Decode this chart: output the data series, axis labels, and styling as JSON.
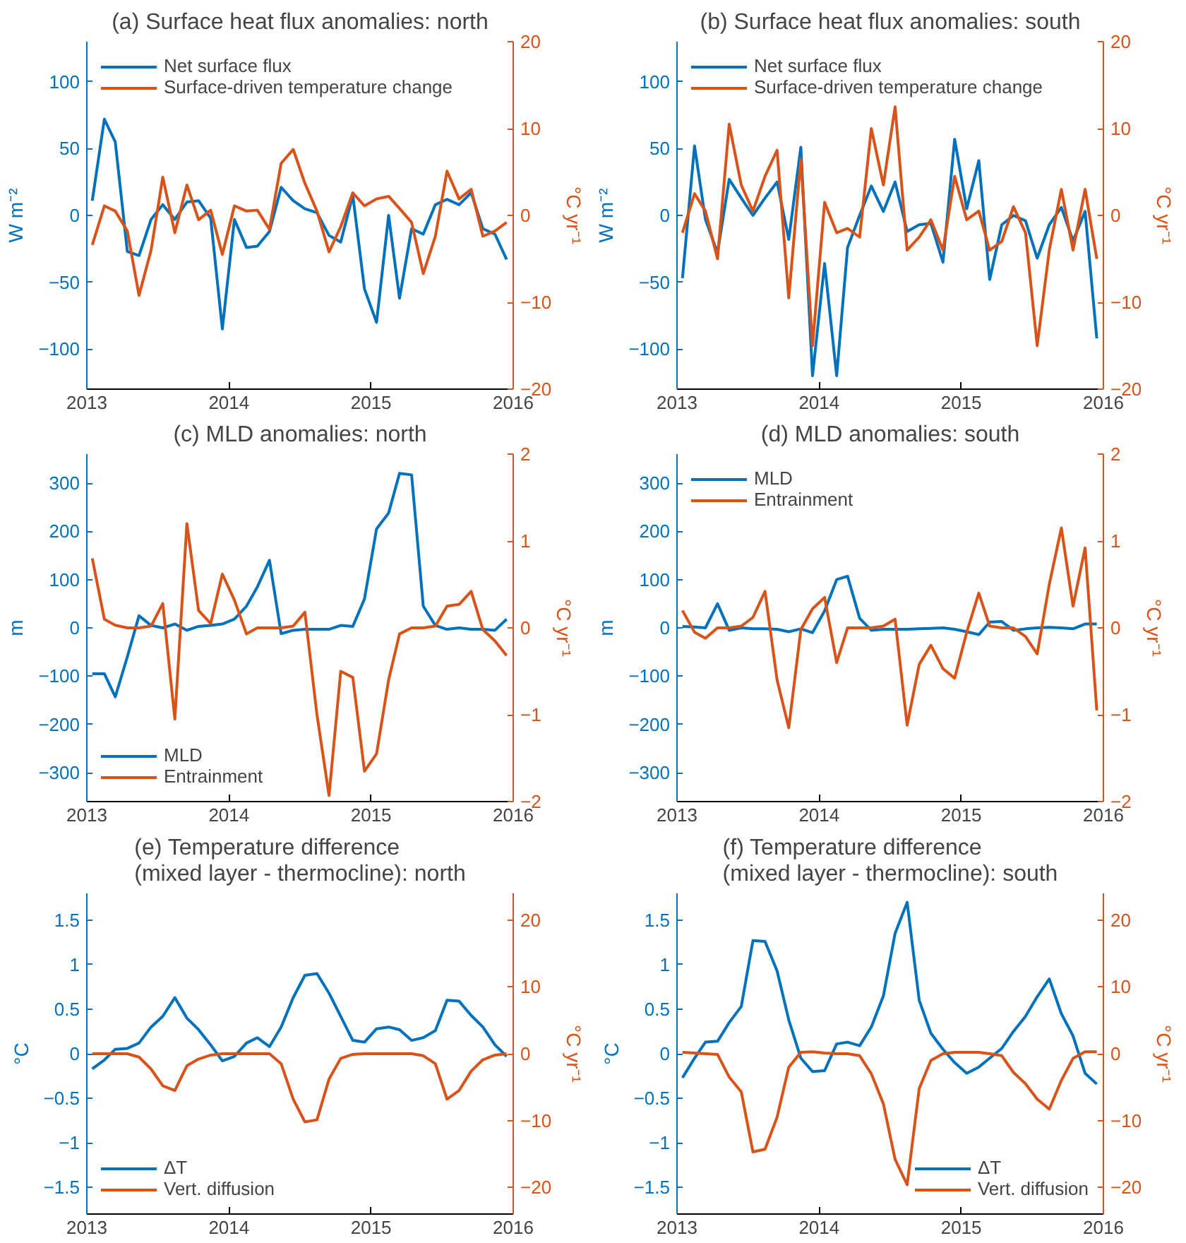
{
  "chart_data": [
    {
      "type": "line",
      "title": "(a) Surface heat flux anomalies: north",
      "ylabel": "W m⁻²",
      "y2label": "°C yr⁻¹",
      "legend": "top left",
      "xlim": [
        "2013",
        "2016"
      ],
      "xticks": [
        "2013",
        "2014",
        "2015",
        "2016"
      ],
      "ylim": [
        -130,
        130
      ],
      "yticks": [
        -100,
        -50,
        0,
        50,
        100
      ],
      "y2lim": [
        -20,
        20
      ],
      "y2ticks": [
        -20,
        -10,
        0,
        10,
        20
      ],
      "x": [
        "2013-01-15",
        "2013-02-15",
        "2013-03-15",
        "2013-04-15",
        "2013-05-15",
        "2013-06-15",
        "2013-07-15",
        "2013-08-15",
        "2013-09-15",
        "2013-10-15",
        "2013-11-15",
        "2013-12-15",
        "2014-01-15",
        "2014-02-15",
        "2014-03-15",
        "2014-04-15",
        "2014-05-15",
        "2014-06-15",
        "2014-07-15",
        "2014-08-15",
        "2014-09-15",
        "2014-10-15",
        "2014-11-15",
        "2014-12-15",
        "2015-01-15",
        "2015-02-15",
        "2015-03-15",
        "2015-04-15",
        "2015-05-15",
        "2015-06-15",
        "2015-07-15",
        "2015-08-15",
        "2015-09-15",
        "2015-10-15",
        "2015-11-15",
        "2015-12-15"
      ],
      "series": [
        {
          "name": "Net surface flux",
          "color": "#0072bd",
          "values": [
            11,
            72,
            55,
            -27,
            -30,
            -3,
            8,
            -3,
            10,
            11,
            -2,
            -85,
            -3,
            -24,
            -23,
            -12,
            21,
            11,
            5,
            2,
            -15,
            -20,
            15,
            -55,
            -80,
            0,
            -62,
            -10,
            -14,
            8,
            12,
            8,
            17,
            -10,
            -14,
            -33
          ]
        },
        {
          "name": "Surface-driven temperature change",
          "color": "#d95319",
          "axis": "y2",
          "values": [
            -3.4,
            1.1,
            0.5,
            -1.8,
            -9.2,
            -4,
            4.4,
            -2,
            3.5,
            -0.5,
            0.6,
            -4.5,
            1.1,
            0.5,
            0.6,
            -1.6,
            6,
            7.6,
            3.7,
            0.5,
            -4.2,
            -1.3,
            2.6,
            1.1,
            1.9,
            2.2,
            0.8,
            -0.8,
            -6.7,
            -2.4,
            5.1,
            1.9,
            3,
            -2.4,
            -1.8,
            -0.8
          ]
        }
      ]
    },
    {
      "type": "line",
      "title": "(b) Surface heat flux anomalies: south",
      "ylabel": "W m⁻²",
      "y2label": "°C yr⁻¹",
      "legend": "top left",
      "xlim": [
        "2013",
        "2016"
      ],
      "xticks": [
        "2013",
        "2014",
        "2015",
        "2016"
      ],
      "ylim": [
        -130,
        130
      ],
      "yticks": [
        -100,
        -50,
        0,
        50,
        100
      ],
      "y2lim": [
        -20,
        20
      ],
      "y2ticks": [
        -20,
        -10,
        0,
        10,
        20
      ],
      "x": [
        "2013-01-15",
        "2013-02-15",
        "2013-03-15",
        "2013-04-15",
        "2013-05-15",
        "2013-06-15",
        "2013-07-15",
        "2013-08-15",
        "2013-09-15",
        "2013-10-15",
        "2013-11-15",
        "2013-12-15",
        "2014-01-15",
        "2014-02-15",
        "2014-03-15",
        "2014-04-15",
        "2014-05-15",
        "2014-06-15",
        "2014-07-15",
        "2014-08-15",
        "2014-09-15",
        "2014-10-15",
        "2014-11-15",
        "2014-12-15",
        "2015-01-15",
        "2015-02-15",
        "2015-03-15",
        "2015-04-15",
        "2015-05-15",
        "2015-06-15",
        "2015-07-15",
        "2015-08-15",
        "2015-09-15",
        "2015-10-15",
        "2015-11-15",
        "2015-12-15"
      ],
      "series": [
        {
          "name": "Net surface flux",
          "color": "#0072bd",
          "values": [
            -47,
            52,
            -3,
            -28,
            27,
            13,
            0,
            13,
            25,
            -18,
            51,
            -120,
            -36,
            -120,
            -24,
            0,
            22,
            3,
            25,
            -12,
            -7,
            -6,
            -35,
            57,
            5,
            41,
            -48,
            -7,
            0,
            -4,
            -32,
            -7,
            6,
            -19,
            3,
            -92
          ]
        },
        {
          "name": "Surface-driven temperature change",
          "color": "#d95319",
          "axis": "y2",
          "values": [
            -2,
            2.5,
            0.5,
            -5,
            10.5,
            3.5,
            0.5,
            4.5,
            7.5,
            -9.5,
            6.5,
            -15,
            1.5,
            -2,
            -1.5,
            -2.5,
            10,
            3.5,
            12.5,
            -4,
            -2.5,
            -0.5,
            -4,
            4.5,
            -0.5,
            0.5,
            -4,
            -3,
            1,
            -2,
            -15,
            -4,
            3,
            -4,
            3,
            -5
          ]
        }
      ]
    },
    {
      "type": "line",
      "title": "(c) MLD anomalies: north",
      "ylabel": "m",
      "y2label": "°C yr⁻¹",
      "legend": "bottom left",
      "xlim": [
        "2013",
        "2016"
      ],
      "xticks": [
        "2013",
        "2014",
        "2015",
        "2016"
      ],
      "ylim": [
        -360,
        360
      ],
      "yticks": [
        -300,
        -200,
        -100,
        0,
        100,
        200,
        300
      ],
      "y2lim": [
        -2,
        2
      ],
      "y2ticks": [
        -2,
        -1,
        0,
        1,
        2
      ],
      "x": [
        "2013-01-15",
        "2013-02-15",
        "2013-03-15",
        "2013-04-15",
        "2013-05-15",
        "2013-06-15",
        "2013-07-15",
        "2013-08-15",
        "2013-09-15",
        "2013-10-15",
        "2013-11-15",
        "2013-12-15",
        "2014-01-15",
        "2014-02-15",
        "2014-03-15",
        "2014-04-15",
        "2014-05-15",
        "2014-06-15",
        "2014-07-15",
        "2014-08-15",
        "2014-09-15",
        "2014-10-15",
        "2014-11-15",
        "2014-12-15",
        "2015-01-15",
        "2015-02-15",
        "2015-03-15",
        "2015-04-15",
        "2015-05-15",
        "2015-06-15",
        "2015-07-15",
        "2015-08-15",
        "2015-09-15",
        "2015-10-15",
        "2015-11-15",
        "2015-12-15"
      ],
      "series": [
        {
          "name": "MLD",
          "color": "#0072bd",
          "values": [
            -95,
            -95,
            -143,
            -60,
            25,
            5,
            0,
            8,
            -5,
            3,
            5,
            8,
            18,
            45,
            85,
            140,
            -12,
            -5,
            -3,
            -3,
            -3,
            5,
            3,
            60,
            205,
            238,
            320,
            317,
            45,
            5,
            -3,
            0,
            -3,
            -3,
            -5,
            18
          ]
        },
        {
          "name": "Entrainment",
          "color": "#d95319",
          "axis": "y2",
          "values": [
            0.8,
            0.1,
            0.03,
            0,
            0,
            0.02,
            0.28,
            -1.05,
            1.2,
            0.2,
            0.05,
            0.62,
            0.32,
            -0.07,
            0,
            0,
            0,
            0.02,
            0.18,
            -1,
            -1.93,
            -0.5,
            -0.57,
            -1.65,
            -1.45,
            -0.6,
            -0.07,
            0,
            0,
            0.02,
            0.25,
            0.27,
            0.42,
            -0.02,
            -0.15,
            -0.32
          ]
        }
      ]
    },
    {
      "type": "line",
      "title": "(d) MLD anomalies: south",
      "ylabel": "m",
      "y2label": "°C yr⁻¹",
      "legend": "top left",
      "xlim": [
        "2013",
        "2016"
      ],
      "xticks": [
        "2013",
        "2014",
        "2015",
        "2016"
      ],
      "ylim": [
        -360,
        360
      ],
      "yticks": [
        -300,
        -200,
        -100,
        0,
        100,
        200,
        300
      ],
      "y2lim": [
        -2,
        2
      ],
      "y2ticks": [
        -2,
        -1,
        0,
        1,
        2
      ],
      "x": [
        "2013-01-15",
        "2013-02-15",
        "2013-03-15",
        "2013-04-15",
        "2013-05-15",
        "2013-06-15",
        "2013-07-15",
        "2013-08-15",
        "2013-09-15",
        "2013-10-15",
        "2013-11-15",
        "2013-12-15",
        "2014-01-15",
        "2014-02-15",
        "2014-03-15",
        "2014-04-15",
        "2014-05-15",
        "2014-06-15",
        "2014-07-15",
        "2014-08-15",
        "2014-09-15",
        "2014-10-15",
        "2014-11-15",
        "2014-12-15",
        "2015-01-15",
        "2015-02-15",
        "2015-03-15",
        "2015-04-15",
        "2015-05-15",
        "2015-06-15",
        "2015-07-15",
        "2015-08-15",
        "2015-09-15",
        "2015-10-15",
        "2015-11-15",
        "2015-12-15"
      ],
      "series": [
        {
          "name": "MLD",
          "color": "#0072bd",
          "values": [
            3,
            2,
            0,
            50,
            -5,
            0,
            -2,
            -2,
            -3,
            -8,
            -2,
            -10,
            35,
            100,
            107,
            20,
            -5,
            -3,
            -3,
            -3,
            -2,
            -1,
            0,
            -3,
            -8,
            -14,
            12,
            13,
            -5,
            -2,
            0,
            1,
            0,
            -2,
            8,
            8
          ]
        },
        {
          "name": "Entrainment",
          "color": "#d95319",
          "axis": "y2",
          "values": [
            0.2,
            -0.05,
            -0.12,
            0,
            0,
            0.02,
            0.12,
            0.42,
            -0.6,
            -1.15,
            -0.02,
            0.22,
            0.35,
            -0.4,
            0,
            0,
            0,
            0.02,
            0.1,
            -1.12,
            -0.42,
            -0.2,
            -0.47,
            -0.58,
            -0.05,
            0.4,
            0.02,
            0,
            0,
            -0.1,
            -0.3,
            0.5,
            1.15,
            0.25,
            0.92,
            -0.95
          ]
        }
      ]
    },
    {
      "type": "line",
      "title": "(e) Temperature difference\n(mixed layer - thermocline): north",
      "ylabel": "°C",
      "y2label": "°C yr⁻¹",
      "legend": "bottom left",
      "xlim": [
        "2013",
        "2016"
      ],
      "xticks": [
        "2013",
        "2014",
        "2015",
        "2016"
      ],
      "ylim": [
        -1.8,
        1.8
      ],
      "yticks": [
        -1.5,
        -1,
        -0.5,
        0,
        0.5,
        1,
        1.5
      ],
      "y2lim": [
        -24,
        24
      ],
      "y2ticks": [
        -20,
        -10,
        0,
        10,
        20
      ],
      "x": [
        "2013-01-15",
        "2013-02-15",
        "2013-03-15",
        "2013-04-15",
        "2013-05-15",
        "2013-06-15",
        "2013-07-15",
        "2013-08-15",
        "2013-09-15",
        "2013-10-15",
        "2013-11-15",
        "2013-12-15",
        "2014-01-15",
        "2014-02-15",
        "2014-03-15",
        "2014-04-15",
        "2014-05-15",
        "2014-06-15",
        "2014-07-15",
        "2014-08-15",
        "2014-09-15",
        "2014-10-15",
        "2014-11-15",
        "2014-12-15",
        "2015-01-15",
        "2015-02-15",
        "2015-03-15",
        "2015-04-15",
        "2015-05-15",
        "2015-06-15",
        "2015-07-15",
        "2015-08-15",
        "2015-09-15",
        "2015-10-15",
        "2015-11-15",
        "2015-12-15"
      ],
      "series": [
        {
          "name": "ΔT",
          "color": "#0072bd",
          "values": [
            -0.17,
            -0.07,
            0.05,
            0.06,
            0.12,
            0.3,
            0.42,
            0.63,
            0.4,
            0.27,
            0.1,
            -0.08,
            -0.03,
            0.12,
            0.18,
            0.08,
            0.3,
            0.63,
            0.88,
            0.9,
            0.68,
            0.42,
            0.15,
            0.13,
            0.28,
            0.3,
            0.27,
            0.15,
            0.18,
            0.26,
            0.6,
            0.59,
            0.43,
            0.3,
            0.1,
            -0.03
          ]
        },
        {
          "name": "Vert. diffusion",
          "color": "#d95319",
          "axis": "y2",
          "values": [
            0,
            0,
            0,
            0,
            -0.5,
            -2.3,
            -4.8,
            -5.5,
            -1.8,
            -0.8,
            -0.2,
            0,
            0,
            0,
            0,
            0,
            -1.5,
            -6.8,
            -10.2,
            -9.9,
            -3.8,
            -0.7,
            -0.1,
            0,
            0,
            0,
            0,
            0,
            -0.3,
            -1.5,
            -6.8,
            -5.5,
            -2.6,
            -0.9,
            -0.2,
            0
          ]
        }
      ]
    },
    {
      "type": "line",
      "title": "(f) Temperature difference\n(mixed layer - thermocline): south",
      "ylabel": "°C",
      "y2label": "°C yr⁻¹",
      "legend": "bottom right",
      "xlim": [
        "2013",
        "2016"
      ],
      "xticks": [
        "2013",
        "2014",
        "2015",
        "2016"
      ],
      "ylim": [
        -1.8,
        1.8
      ],
      "yticks": [
        -1.5,
        -1,
        -0.5,
        0,
        0.5,
        1,
        1.5
      ],
      "y2lim": [
        -24,
        24
      ],
      "y2ticks": [
        -20,
        -10,
        0,
        10,
        20
      ],
      "x": [
        "2013-01-15",
        "2013-02-15",
        "2013-03-15",
        "2013-04-15",
        "2013-05-15",
        "2013-06-15",
        "2013-07-15",
        "2013-08-15",
        "2013-09-15",
        "2013-10-15",
        "2013-11-15",
        "2013-12-15",
        "2014-01-15",
        "2014-02-15",
        "2014-03-15",
        "2014-04-15",
        "2014-05-15",
        "2014-06-15",
        "2014-07-15",
        "2014-08-15",
        "2014-09-15",
        "2014-10-15",
        "2014-11-15",
        "2014-12-15",
        "2015-01-15",
        "2015-02-15",
        "2015-03-15",
        "2015-04-15",
        "2015-05-15",
        "2015-06-15",
        "2015-07-15",
        "2015-08-15",
        "2015-09-15",
        "2015-10-15",
        "2015-11-15",
        "2015-12-15"
      ],
      "series": [
        {
          "name": "ΔT",
          "color": "#0072bd",
          "values": [
            -0.27,
            -0.05,
            0.13,
            0.14,
            0.35,
            0.53,
            1.27,
            1.26,
            0.93,
            0.38,
            -0.05,
            -0.2,
            -0.19,
            0.11,
            0.13,
            0.09,
            0.3,
            0.65,
            1.35,
            1.7,
            0.6,
            0.23,
            0.05,
            -0.1,
            -0.22,
            -0.15,
            -0.05,
            0.06,
            0.25,
            0.42,
            0.64,
            0.84,
            0.45,
            0.2,
            -0.22,
            -0.34
          ]
        },
        {
          "name": "Vert. diffusion",
          "color": "#d95319",
          "axis": "y2",
          "values": [
            0.2,
            0.1,
            0,
            -0.1,
            -3.5,
            -5.7,
            -14.7,
            -14.3,
            -9.5,
            -2,
            0.2,
            0.3,
            0.1,
            0,
            0,
            -0.3,
            -3,
            -7.5,
            -15.8,
            -19.6,
            -5.2,
            -1,
            0,
            0.2,
            0.2,
            0.2,
            0,
            -0.3,
            -2.8,
            -4.5,
            -6.8,
            -8.3,
            -4,
            -0.7,
            0.3,
            0.3
          ]
        }
      ]
    }
  ]
}
